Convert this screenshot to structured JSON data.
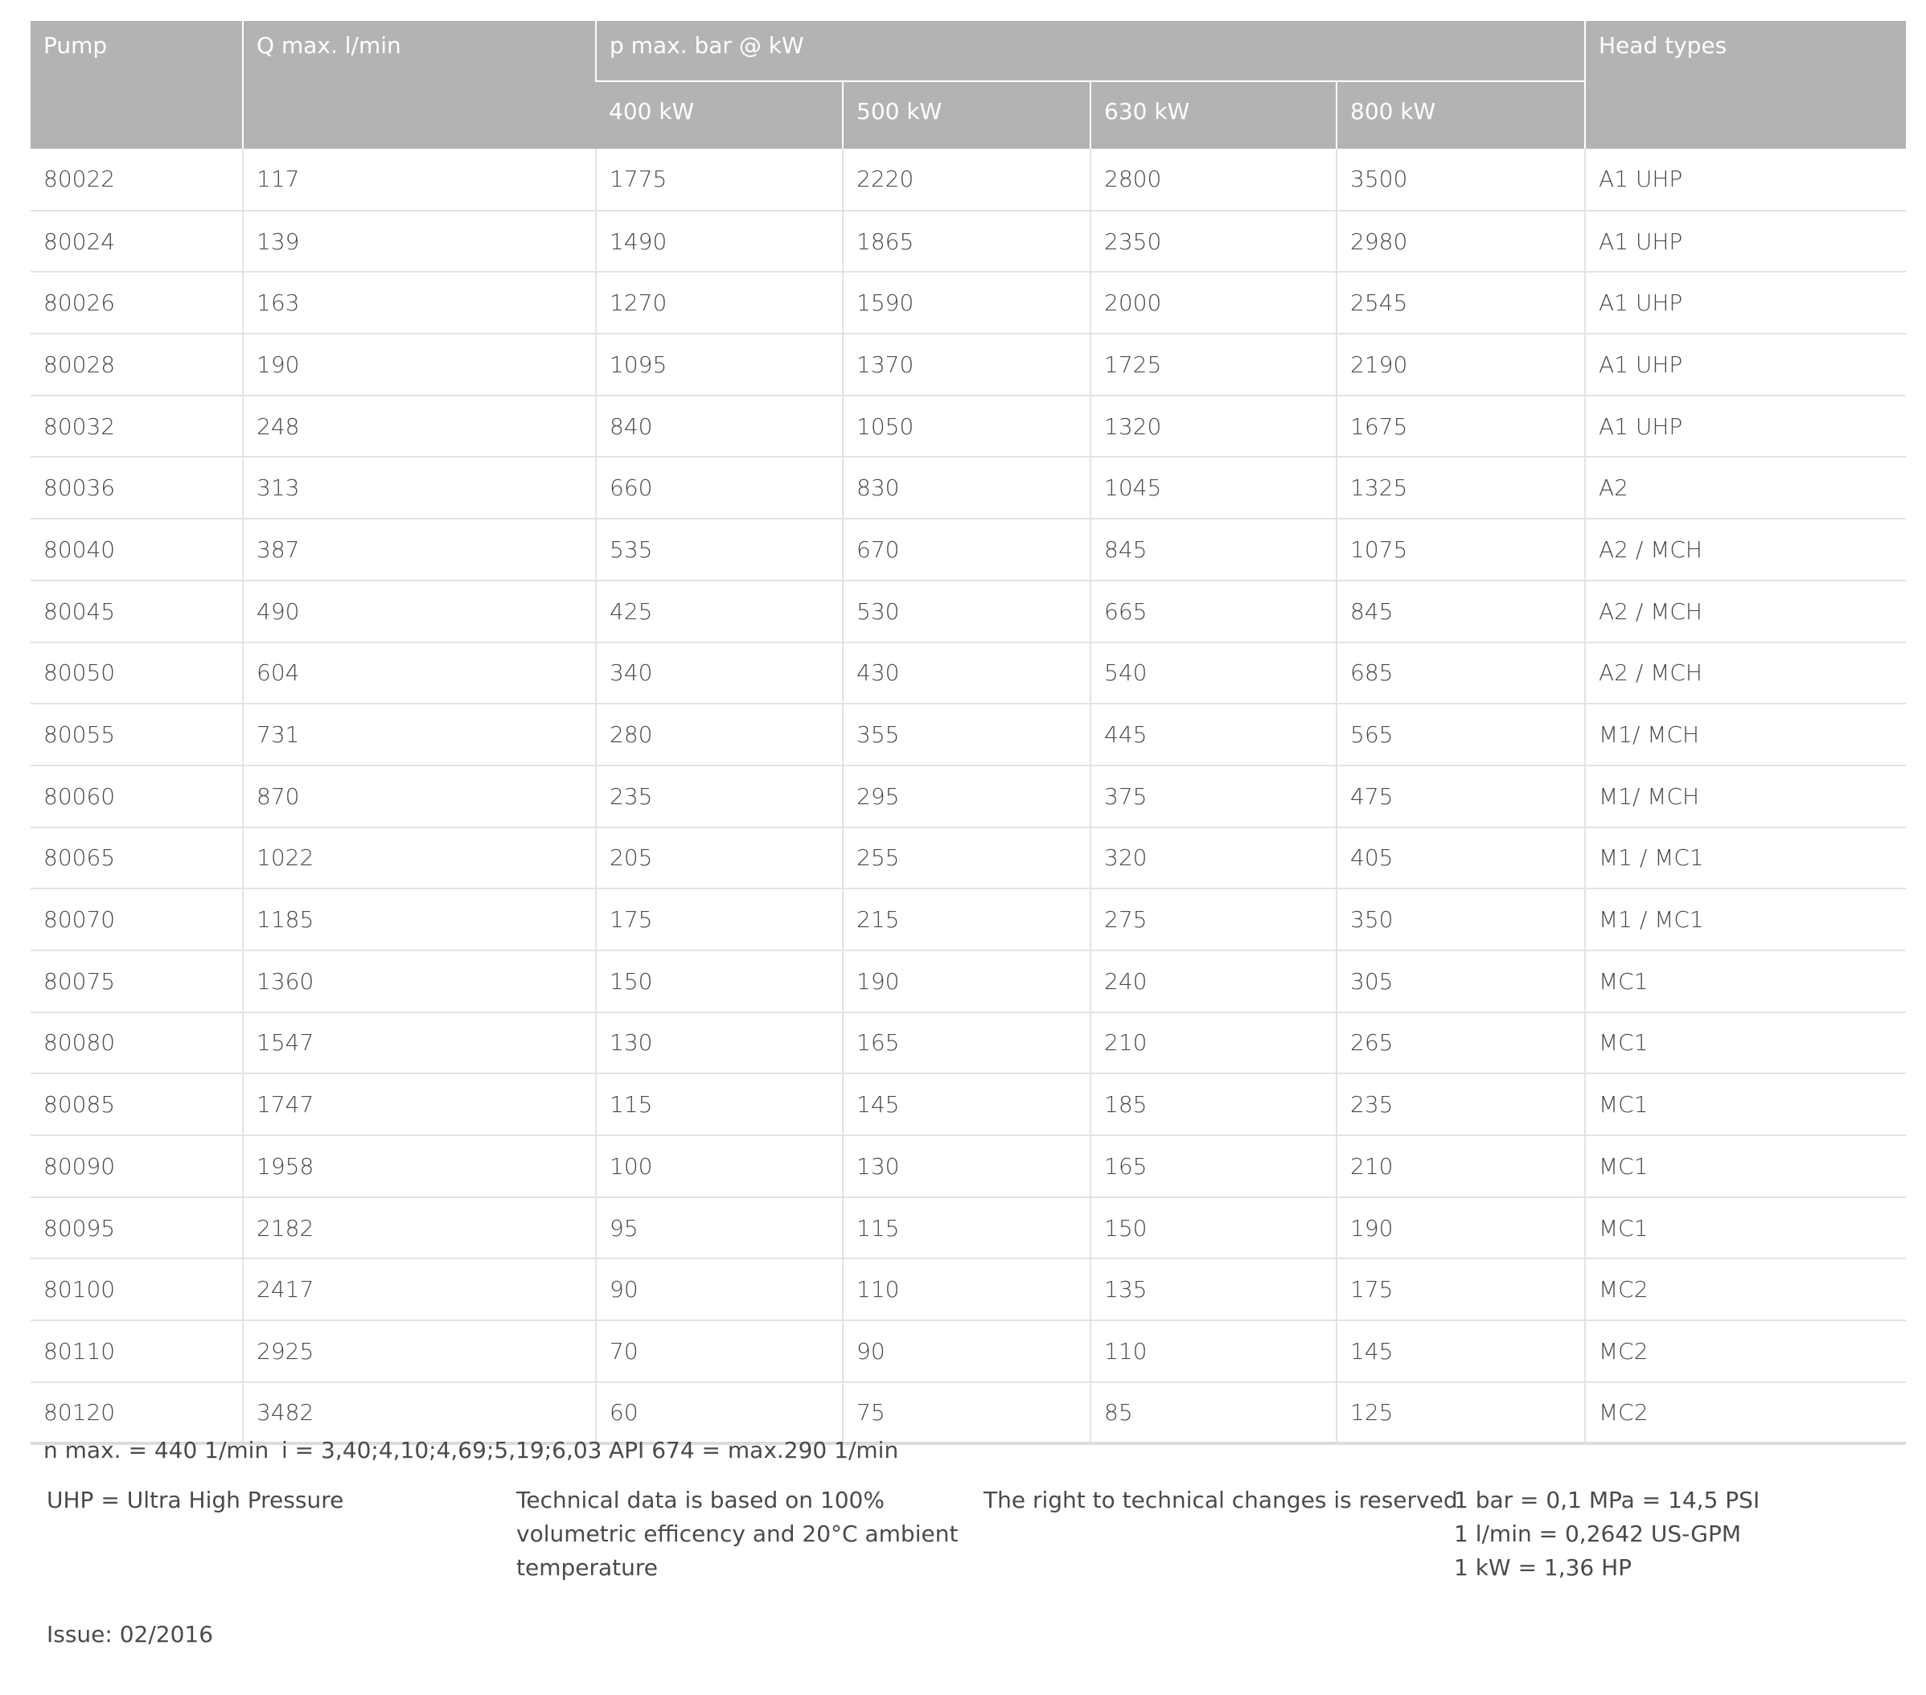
{
  "header": {
    "pump": "Pump",
    "q_max": "Q max. l/min",
    "p_max": "p max. bar @ kW",
    "head_types": "Head types",
    "kw": [
      "400 kW",
      "500 kW",
      "630 kW",
      "800 kW"
    ]
  },
  "rows": [
    [
      "80022",
      "117",
      "1775",
      "2220",
      "2800",
      "3500",
      "A1 UHP"
    ],
    [
      "80024",
      "139",
      "1490",
      "1865",
      "2350",
      "2980",
      "A1 UHP"
    ],
    [
      "80026",
      "163",
      "1270",
      "1590",
      "2000",
      "2545",
      "A1 UHP"
    ],
    [
      "80028",
      "190",
      "1095",
      "1370",
      "1725",
      "2190",
      "A1 UHP"
    ],
    [
      "80032",
      "248",
      "840",
      "1050",
      "1320",
      "1675",
      "A1 UHP"
    ],
    [
      "80036",
      "313",
      "660",
      "830",
      "1045",
      "1325",
      "A2"
    ],
    [
      "80040",
      "387",
      "535",
      "670",
      "845",
      "1075",
      "A2 / MCH"
    ],
    [
      "80045",
      "490",
      "425",
      "530",
      "665",
      "845",
      "A2 / MCH"
    ],
    [
      "80050",
      "604",
      "340",
      "430",
      "540",
      "685",
      "A2 / MCH"
    ],
    [
      "80055",
      "731",
      "280",
      "355",
      "445",
      "565",
      "M1/ MCH"
    ],
    [
      "80060",
      "870",
      "235",
      "295",
      "375",
      "475",
      "M1/ MCH"
    ],
    [
      "80065",
      "1022",
      "205",
      "255",
      "320",
      "405",
      "M1 / MC1"
    ],
    [
      "80070",
      "1185",
      "175",
      "215",
      "275",
      "350",
      "M1 / MC1"
    ],
    [
      "80075",
      "1360",
      "150",
      "190",
      "240",
      "305",
      "MC1"
    ],
    [
      "80080",
      "1547",
      "130",
      "165",
      "210",
      "265",
      "MC1"
    ],
    [
      "80085",
      "1747",
      "115",
      "145",
      "185",
      "235",
      "MC1"
    ],
    [
      "80090",
      "1958",
      "100",
      "130",
      "165",
      "210",
      "MC1"
    ],
    [
      "80095",
      "2182",
      "95",
      "115",
      "150",
      "190",
      "MC1"
    ],
    [
      "80100",
      "2417",
      "90",
      "110",
      "135",
      "175",
      "MC2"
    ],
    [
      "80110",
      "2925",
      "70",
      "90",
      "110",
      "145",
      "MC2"
    ],
    [
      "80120",
      "3482",
      "60",
      "75",
      "85",
      "125",
      "MC2"
    ]
  ],
  "footer": {
    "n_max": "n max. = 440 1/min",
    "ratios": "i = 3,40;4,10;4,69;5,19;6,03",
    "api": "API 674 = max.290 1/min",
    "uhp": "UHP = Ultra High Pressure",
    "technical_data": [
      "Technical data is based on 100%",
      "volumetric efficency and 20°C ambient",
      "temperature"
    ],
    "rights": "The right to technical changes is reserved",
    "conversions": [
      "1 bar = 0,1 MPa = 14,5 PSI",
      "1 l/min = 0,2642 US-GPM",
      "1 kW = 1,36 HP"
    ],
    "issue": "Issue: 02/2016"
  }
}
